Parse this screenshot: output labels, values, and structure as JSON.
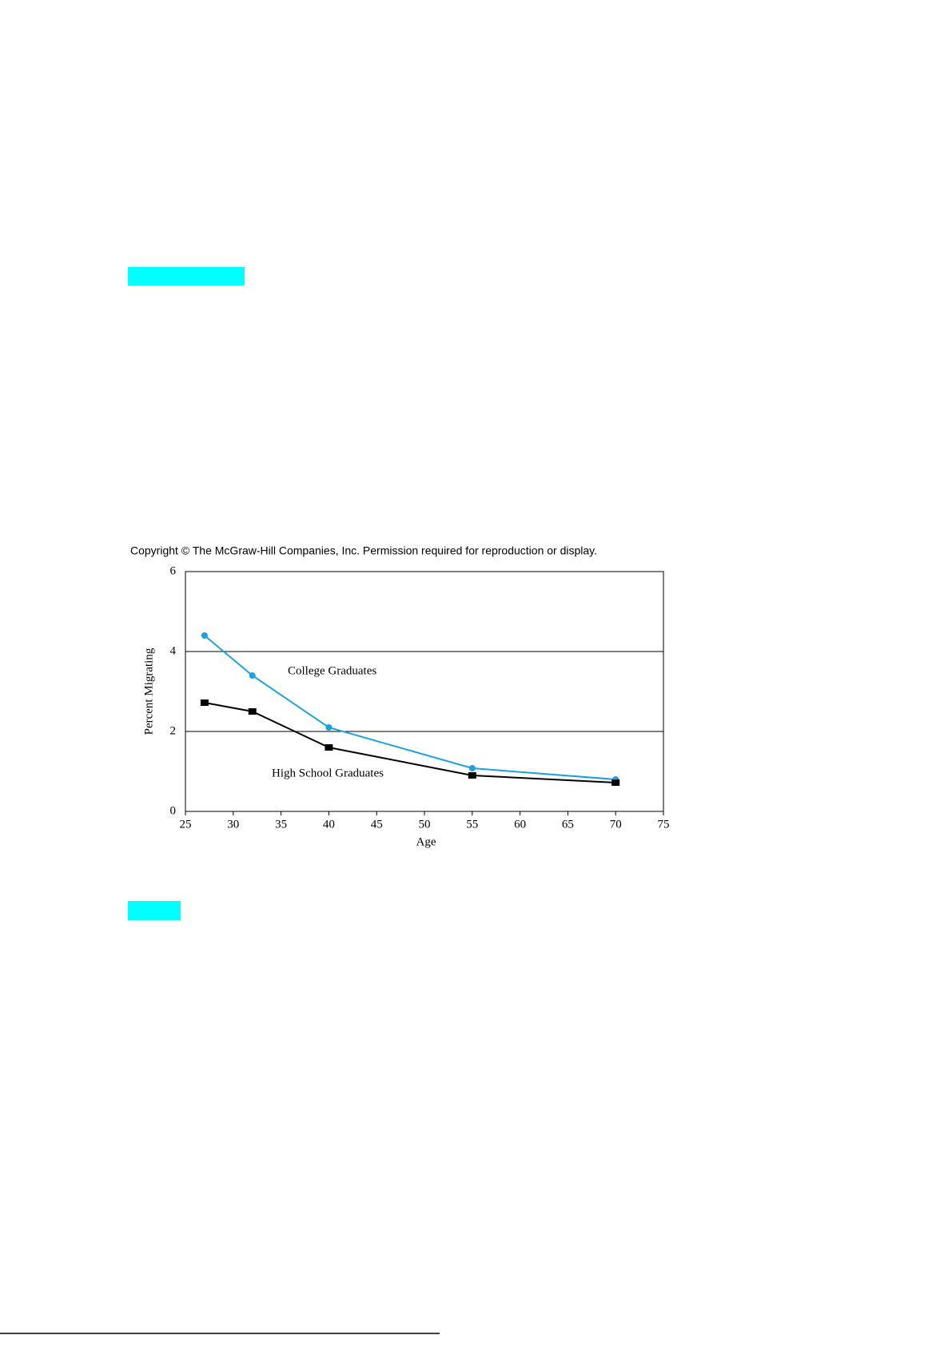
{
  "chart_data": {
    "type": "line",
    "note": "Copyright © The McGraw-Hill Companies, Inc. Permission required for reproduction or display.",
    "xlabel": "Age",
    "ylabel": "Percent Migrating",
    "xlim": [
      25,
      75
    ],
    "xticks": [
      25,
      30,
      35,
      40,
      45,
      50,
      55,
      60,
      65,
      70,
      75
    ],
    "ylim": [
      0,
      6
    ],
    "yticks": [
      0,
      2,
      4,
      6
    ],
    "grid": true,
    "x": [
      27,
      32,
      40,
      55,
      70
    ],
    "series": [
      {
        "name": "College Graduates",
        "color": "#1ba1e2",
        "marker": "circle",
        "values": [
          4.4,
          3.4,
          2.1,
          1.08,
          0.8
        ]
      },
      {
        "name": "High School Graduates",
        "color": "#000000",
        "marker": "square",
        "values": [
          2.72,
          2.5,
          1.6,
          0.9,
          0.72
        ]
      }
    ]
  }
}
